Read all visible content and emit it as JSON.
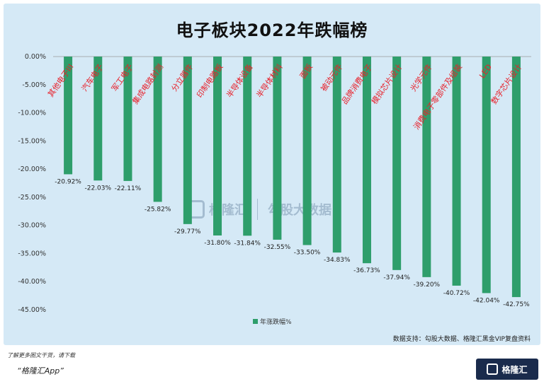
{
  "title": "电子板块2022年跌幅榜",
  "source_note": "数据支持：勾股大数据、格隆汇黑金VIP复盘资料",
  "footer_note": "了解更多图文干货，请下载",
  "footer_app": "“格隆汇App”",
  "logo_text": "格隆汇",
  "watermark": {
    "left": "格隆汇",
    "right": "勾股大数据"
  },
  "chart_data": {
    "type": "bar",
    "title": "电子板块2022年跌幅榜",
    "categories": [
      "其他电子III",
      "汽车电子",
      "军工电子",
      "集成电路封测",
      "分立器件",
      "印制电路板",
      "半导体设备",
      "半导体材料",
      "面板",
      "被动元件",
      "品牌消费电子",
      "模拟芯片设计",
      "光学元件",
      "消费电子零部件及组装",
      "LED",
      "数字芯片设计"
    ],
    "series": [
      {
        "name": "年涨跌幅%",
        "values": [
          -20.92,
          -22.03,
          -22.11,
          -25.82,
          -29.77,
          -31.8,
          -31.84,
          -32.55,
          -33.5,
          -34.83,
          -36.73,
          -37.94,
          -39.2,
          -40.72,
          -42.04,
          -42.75
        ]
      }
    ],
    "data_labels": [
      "-20.92%",
      "-22.03%",
      "-22.11%",
      "-25.82%",
      "-29.77%",
      "-31.80%",
      "-31.84%",
      "-32.55%",
      "-33.50%",
      "-34.83%",
      "-36.73%",
      "-37.94%",
      "-39.20%",
      "-40.72%",
      "-42.04%",
      "-42.75%"
    ],
    "yticks": [
      "0.00%",
      "-5.00%",
      "-10.00%",
      "-15.00%",
      "-20.00%",
      "-25.00%",
      "-30.00%",
      "-35.00%",
      "-40.00%",
      "-45.00%"
    ],
    "ylim": [
      -45,
      0
    ],
    "legend": "bottom-center",
    "grid": false,
    "colors": {
      "bar": "#2e9e6b",
      "category_label": "#e8202a"
    }
  }
}
